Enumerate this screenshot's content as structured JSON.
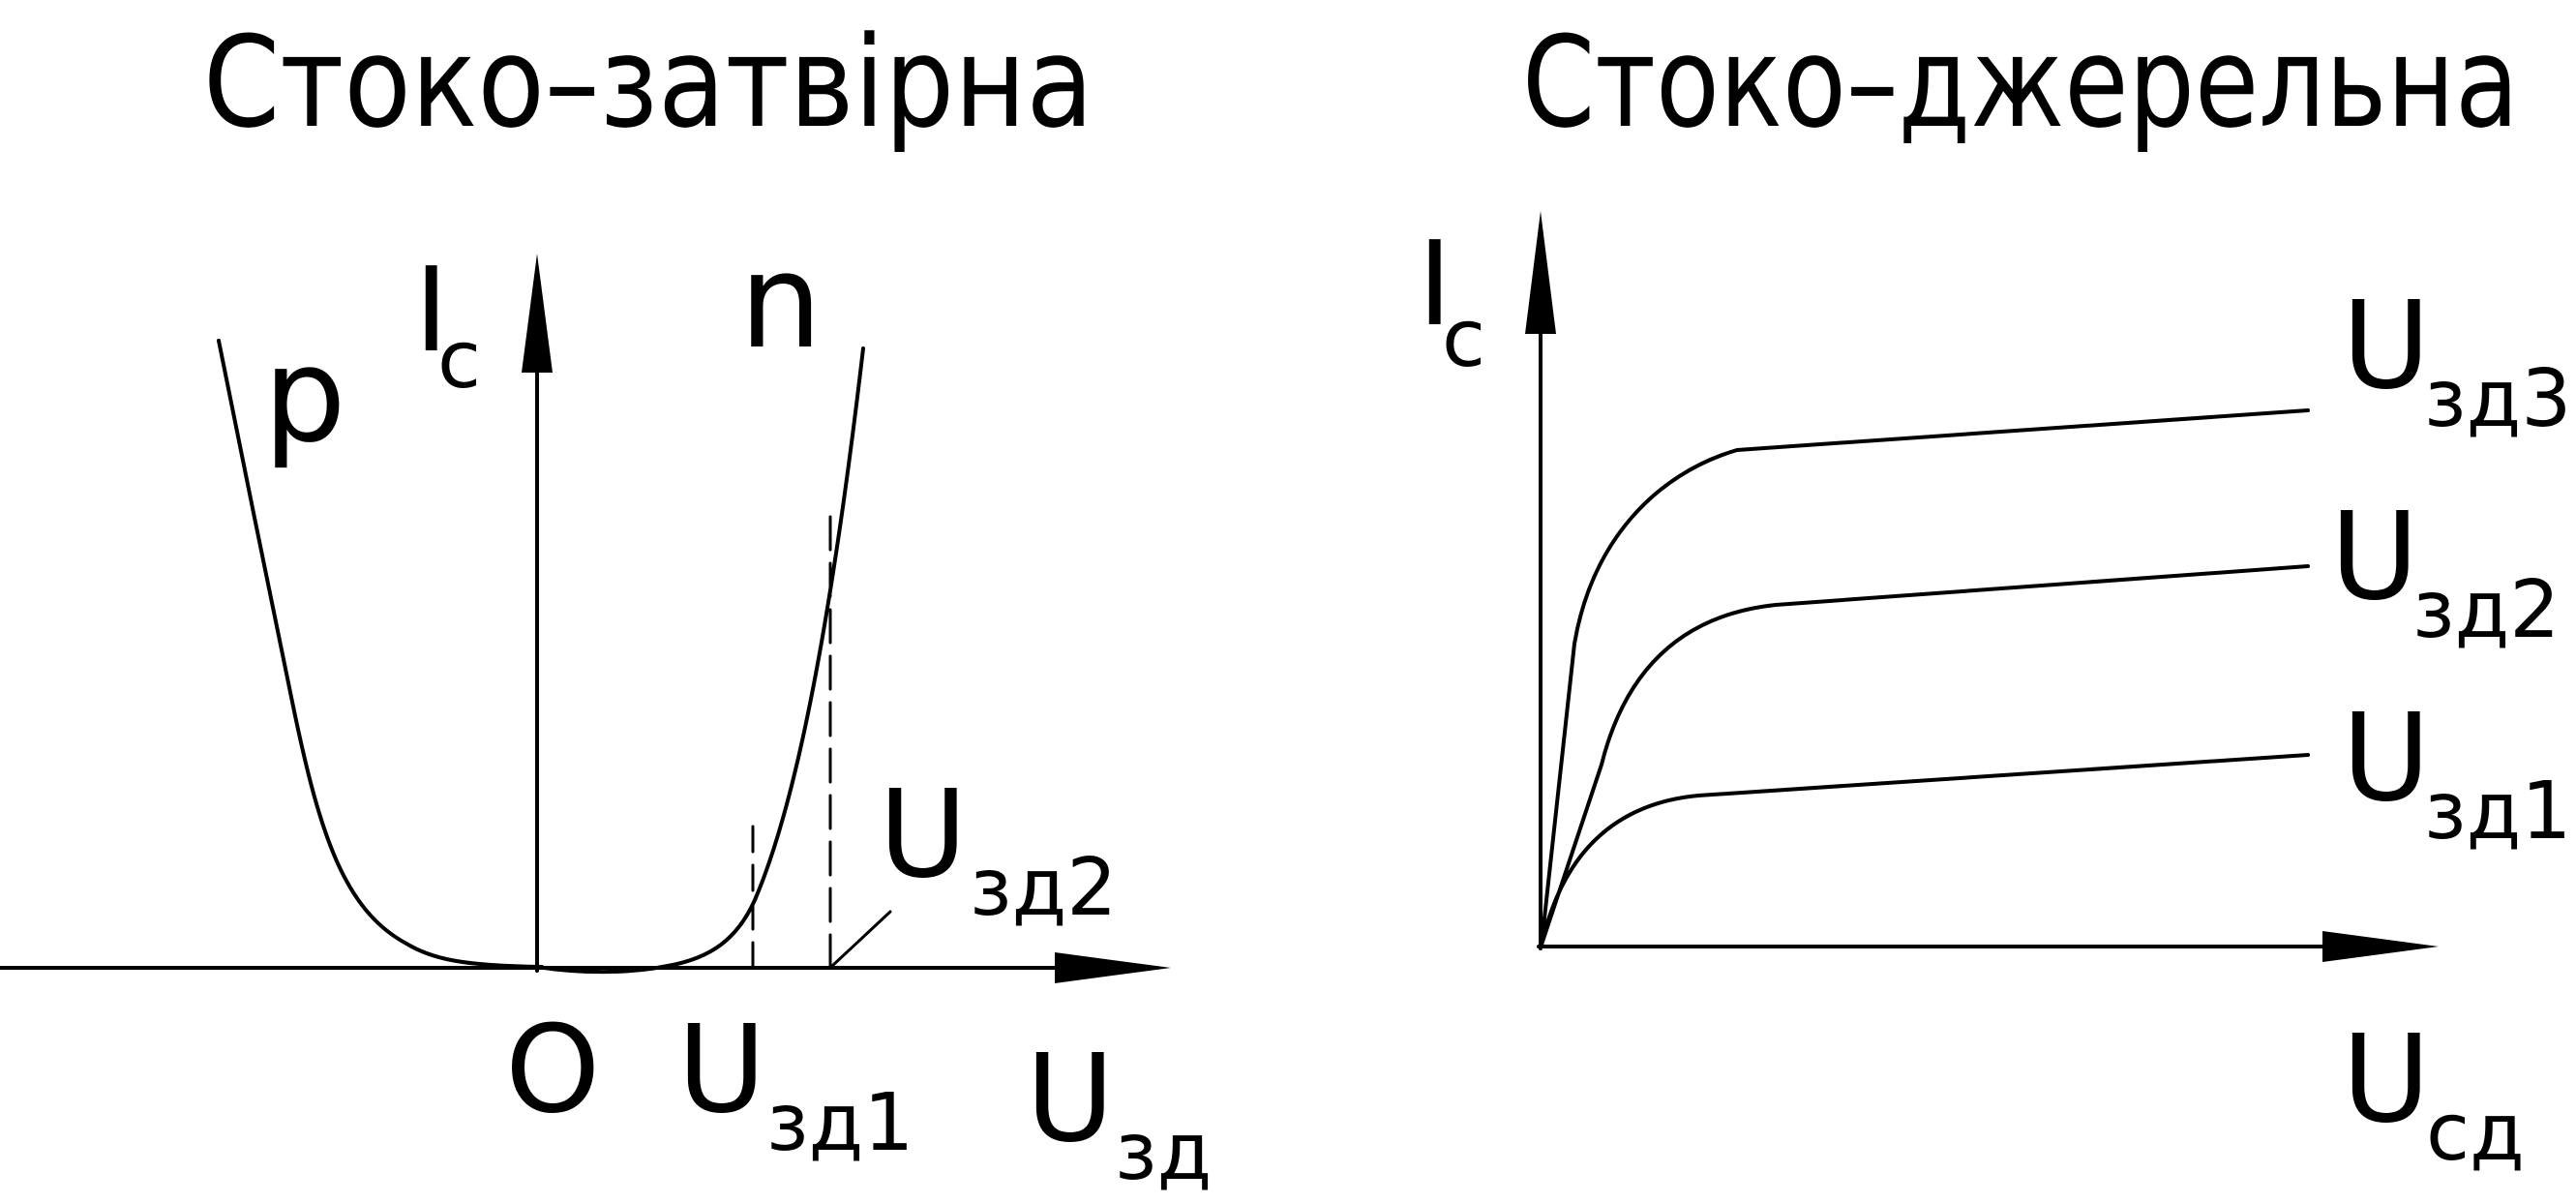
{
  "left_panel": {
    "title": "Стоко–затвірна",
    "y_axis_main": "I",
    "y_axis_sub": "c",
    "branch_p": "p",
    "branch_n": "n",
    "origin": "O",
    "x_axis_main": "U",
    "x_axis_sub": "зд",
    "threshold_1_main": "U",
    "threshold_1_sub": "зд1",
    "threshold_2_main": "U",
    "threshold_2_sub": "зд2"
  },
  "right_panel": {
    "title": "Стоко–джерельна",
    "y_axis_main": "I",
    "y_axis_sub": "c",
    "x_axis_main": "U",
    "x_axis_sub": "сд",
    "curves": [
      {
        "main": "U",
        "sub": "зд3"
      },
      {
        "main": "U",
        "sub": "зд2"
      },
      {
        "main": "U",
        "sub": "зд1"
      }
    ]
  },
  "colors": {
    "ink": "#000000",
    "background": "#ffffff"
  }
}
